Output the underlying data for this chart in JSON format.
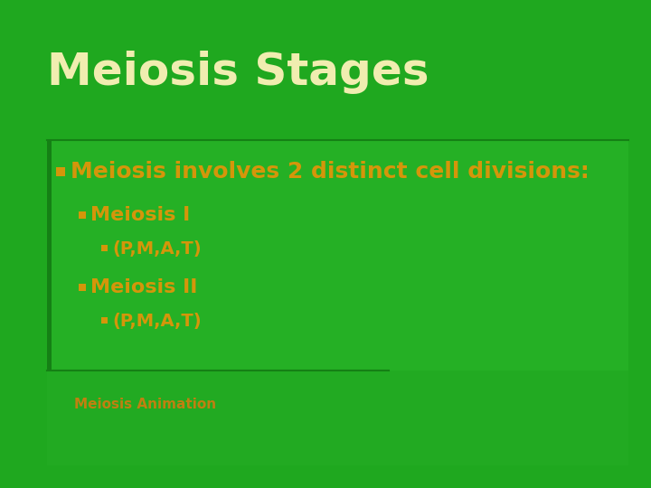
{
  "title": "Meiosis Stages",
  "title_color": "#F0EDB0",
  "title_fontsize": 36,
  "bg_color": "#1FA81F",
  "content_box_color": "#25B025",
  "bullet_color": "#D4960A",
  "bullet1_text": "Meiosis involves 2 distinct cell divisions:",
  "bullet1_fontsize": 18,
  "bullet2a_text": "Meiosis I",
  "bullet2b_text": "Meiosis II",
  "bullet3a_text": "(P,M,A,T)",
  "bullet3b_text": "(P,M,A,T)",
  "sub_bullet_fontsize": 16,
  "sub_sub_bullet_fontsize": 14,
  "bottom_box_color": "#22AA22",
  "animation_text": "Meiosis Animation",
  "animation_text_color": "#C08010",
  "animation_fontsize": 11,
  "divider_color": "#158015",
  "left_bar_color": "#158015"
}
